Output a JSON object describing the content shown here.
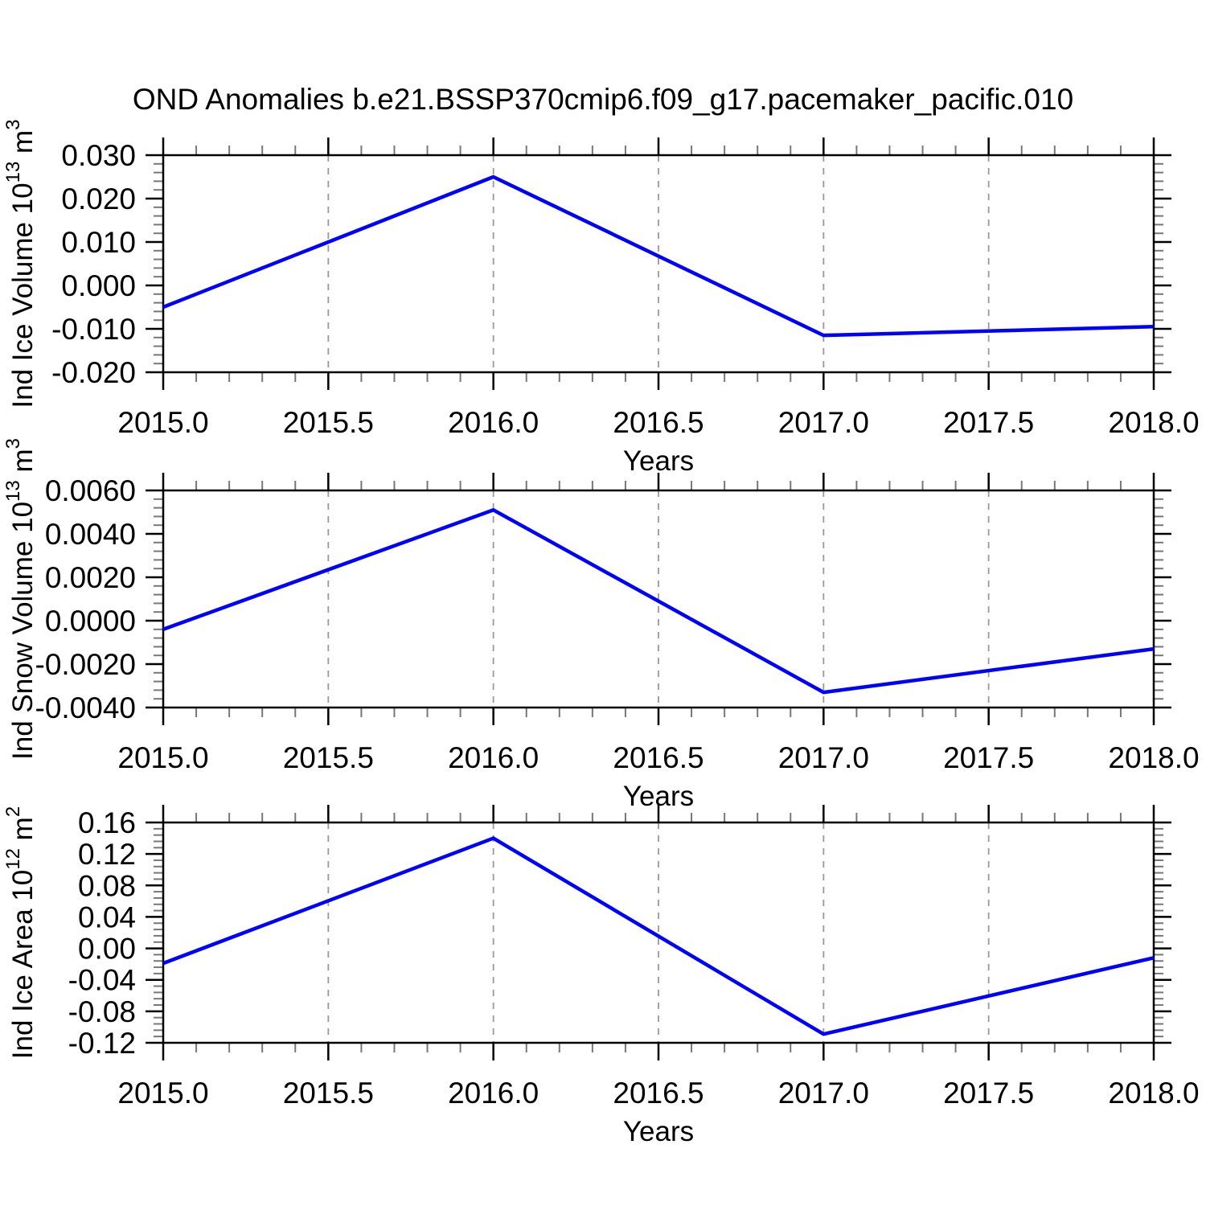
{
  "title": "OND Anomalies b.e21.BSSP370cmip6.f09_g17.pacemaker_pacific.010",
  "colors": {
    "line": "#0000ff",
    "frame": "#000000",
    "major_tick": "#000000",
    "minor_tick": "#777777",
    "grid": "#999999",
    "background": "#ffffff"
  },
  "chart_data": [
    {
      "id": "ice-volume",
      "type": "line",
      "xlabel": "Years",
      "ylabel": "Ind Ice Volume 10^13 m^3",
      "x": [
        2015.0,
        2016.0,
        2017.0,
        2018.0
      ],
      "values": [
        -0.005,
        0.025,
        -0.0115,
        -0.0095
      ],
      "xlim": [
        2015.0,
        2018.0
      ],
      "ylim": [
        -0.02,
        0.03
      ],
      "xticks": [
        2015.0,
        2015.5,
        2016.0,
        2016.5,
        2017.0,
        2017.5,
        2018.0
      ],
      "xtick_labels": [
        "2015.0",
        "2015.5",
        "2016.0",
        "2016.5",
        "2017.0",
        "2017.5",
        "2018.0"
      ],
      "yticks": [
        0.03,
        0.02,
        0.01,
        0.0,
        -0.01,
        -0.02
      ],
      "ytick_labels": [
        "0.030",
        "0.020",
        "0.010",
        "0.000",
        "-0.010",
        "-0.020"
      ],
      "x_minor_step": 0.1,
      "y_minor_step": 0.002,
      "grid_x": [
        2015.5,
        2016.0,
        2016.5,
        2017.0,
        2017.5
      ],
      "grid_style": "dashed-vertical",
      "legend": "none"
    },
    {
      "id": "snow-volume",
      "type": "line",
      "xlabel": "Years",
      "ylabel": "Ind Snow Volume 10^13 m^3",
      "x": [
        2015.0,
        2016.0,
        2017.0,
        2018.0
      ],
      "values": [
        -0.0004,
        0.0051,
        -0.0033,
        -0.0013
      ],
      "xlim": [
        2015.0,
        2018.0
      ],
      "ylim": [
        -0.004,
        0.006
      ],
      "xticks": [
        2015.0,
        2015.5,
        2016.0,
        2016.5,
        2017.0,
        2017.5,
        2018.0
      ],
      "xtick_labels": [
        "2015.0",
        "2015.5",
        "2016.0",
        "2016.5",
        "2017.0",
        "2017.5",
        "2018.0"
      ],
      "yticks": [
        0.006,
        0.004,
        0.002,
        0.0,
        -0.002,
        -0.004
      ],
      "ytick_labels": [
        "0.0060",
        "0.0040",
        "0.0020",
        "0.0000",
        "-0.0020",
        "-0.0040"
      ],
      "x_minor_step": 0.1,
      "y_minor_step": 0.0004,
      "grid_x": [
        2015.5,
        2016.0,
        2016.5,
        2017.0,
        2017.5
      ],
      "grid_style": "dashed-vertical",
      "legend": "none"
    },
    {
      "id": "ice-area",
      "type": "line",
      "xlabel": "Years",
      "ylabel": "Ind Ice Area 10^12 m^2",
      "x": [
        2015.0,
        2016.0,
        2017.0,
        2018.0
      ],
      "values": [
        -0.019,
        0.14,
        -0.109,
        -0.012
      ],
      "xlim": [
        2015.0,
        2018.0
      ],
      "ylim": [
        -0.12,
        0.16
      ],
      "xticks": [
        2015.0,
        2015.5,
        2016.0,
        2016.5,
        2017.0,
        2017.5,
        2018.0
      ],
      "xtick_labels": [
        "2015.0",
        "2015.5",
        "2016.0",
        "2016.5",
        "2017.0",
        "2017.5",
        "2018.0"
      ],
      "yticks": [
        0.16,
        0.12,
        0.08,
        0.04,
        0.0,
        -0.04,
        -0.08,
        -0.12
      ],
      "ytick_labels": [
        "0.16",
        "0.12",
        "0.08",
        "0.04",
        "0.00",
        "-0.04",
        "-0.08",
        "-0.12"
      ],
      "x_minor_step": 0.1,
      "y_minor_step": 0.008,
      "grid_x": [
        2015.5,
        2016.0,
        2016.5,
        2017.0,
        2017.5
      ],
      "grid_style": "dashed-vertical",
      "legend": "none"
    }
  ]
}
